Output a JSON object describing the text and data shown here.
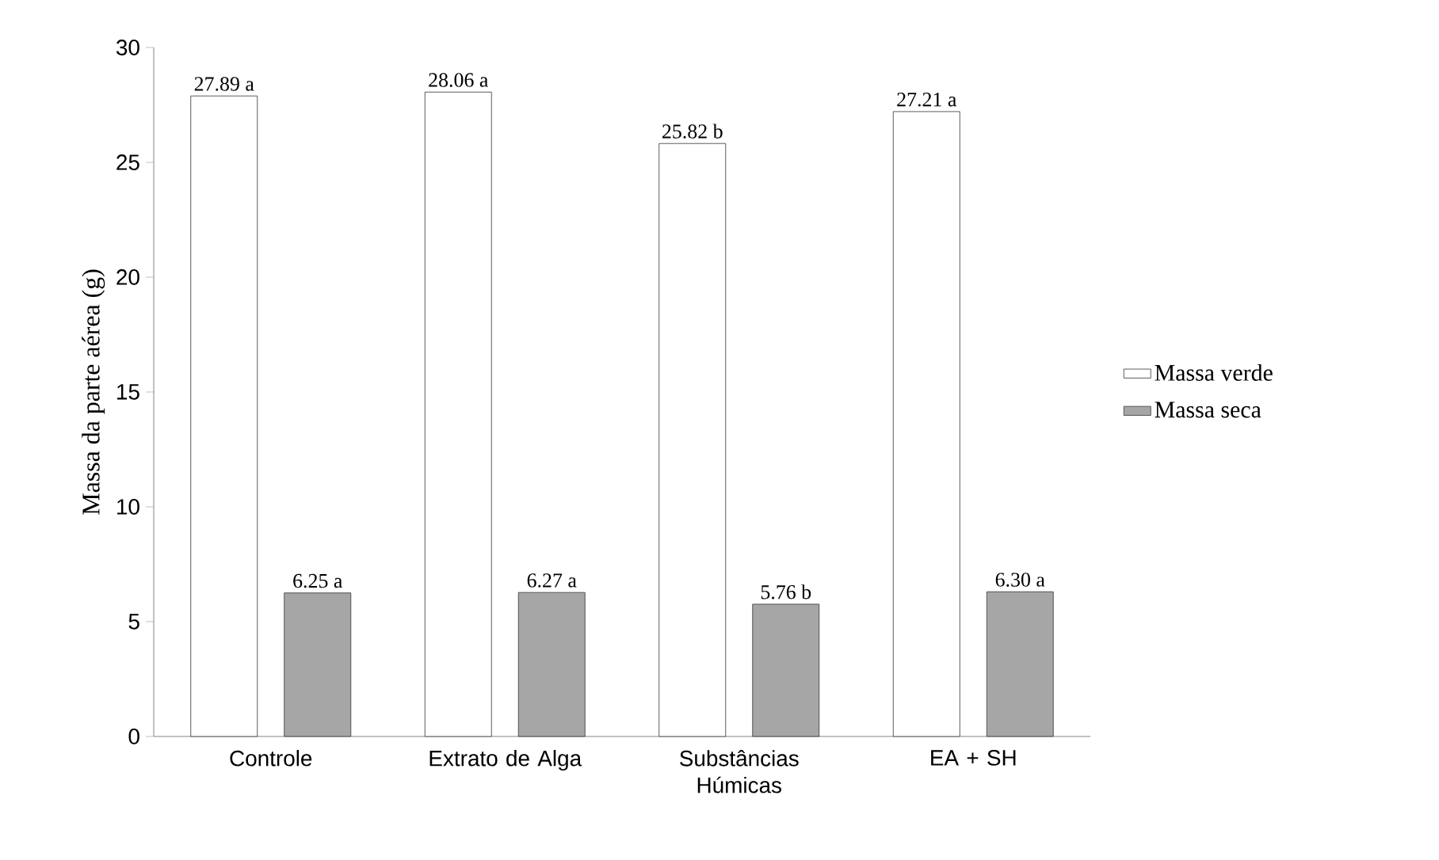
{
  "chart_data": {
    "type": "bar",
    "ylabel": "Massa da parte aérea  (g)",
    "categories": [
      "Controle",
      "Extrato de Alga",
      "Substâncias Húmicas",
      "EA + SH"
    ],
    "ylim": [
      0,
      30
    ],
    "yticks": [
      0,
      5,
      10,
      15,
      20,
      25,
      30
    ],
    "legend": "right",
    "grid": false,
    "series": [
      {
        "name": "Massa verde",
        "color": "#ffffff",
        "values": [
          27.89,
          28.06,
          25.82,
          27.21
        ],
        "value_labels": [
          "27.89 a",
          "28.06 a",
          "25.82 b",
          "27.21 a"
        ]
      },
      {
        "name": "Massa seca",
        "color": "#a6a6a6",
        "values": [
          6.25,
          6.27,
          5.76,
          6.3
        ],
        "value_labels": [
          "6.25 a",
          "6.27 a",
          "5.76 b",
          "6.30 a"
        ]
      }
    ]
  }
}
